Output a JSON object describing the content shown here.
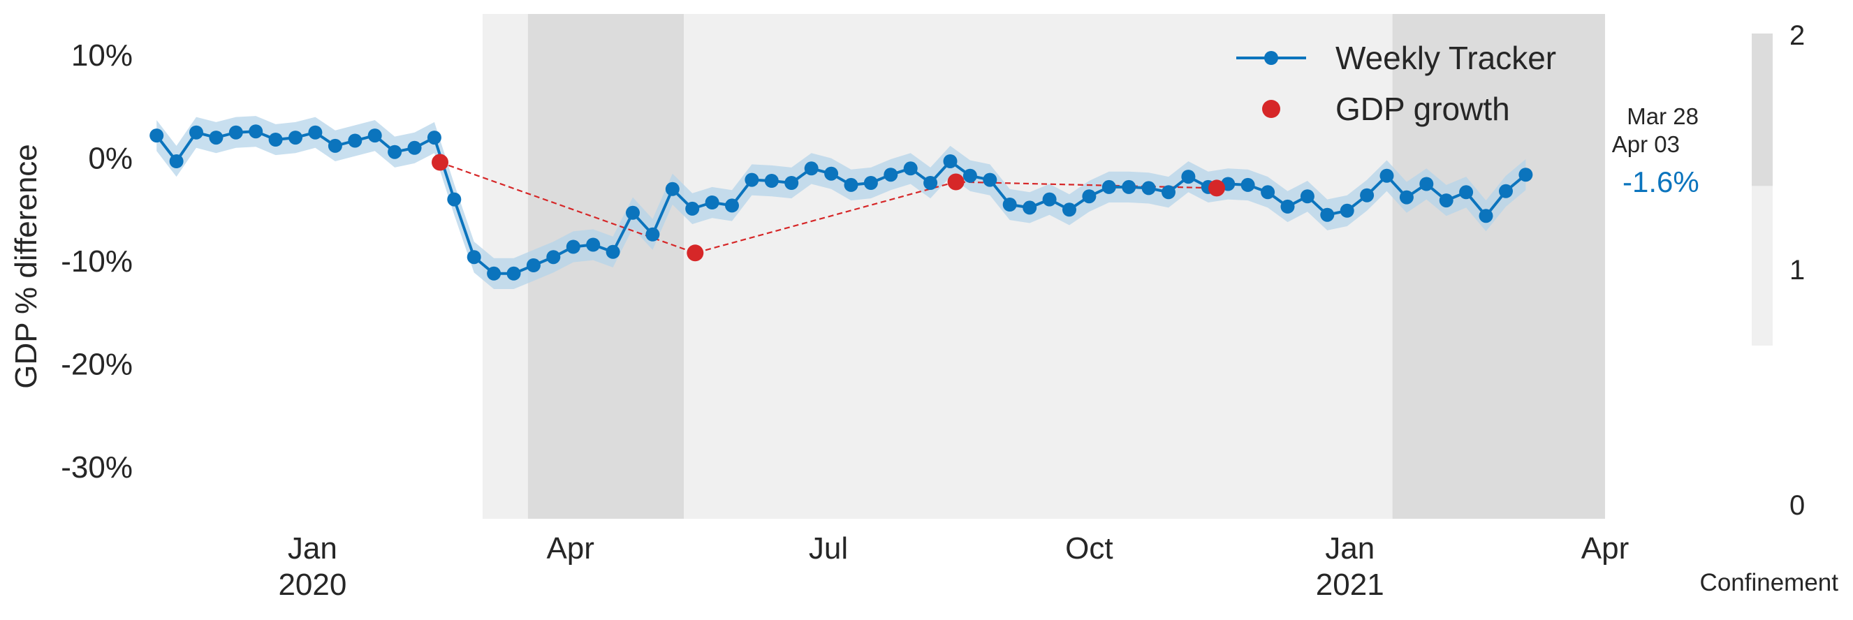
{
  "chart_data": {
    "type": "line",
    "ylabel": "GDP % difference",
    "ylim": [
      -35,
      14
    ],
    "yticks": [
      10,
      0,
      -10,
      -20,
      -30
    ],
    "ytick_labels": [
      "10%",
      "0%",
      "-10%",
      "-20%",
      "-30%"
    ],
    "xlim": [
      "2019-11-04",
      "2021-04-01"
    ],
    "xticks": [
      {
        "date": "2020-01-01",
        "label": "Jan",
        "year": "2020"
      },
      {
        "date": "2020-04-01",
        "label": "Apr",
        "year": ""
      },
      {
        "date": "2020-07-01",
        "label": "Jul",
        "year": ""
      },
      {
        "date": "2020-10-01",
        "label": "Oct",
        "year": ""
      },
      {
        "date": "2021-01-01",
        "label": "Jan",
        "year": "2021"
      },
      {
        "date": "2021-04-01",
        "label": "Apr",
        "year": ""
      }
    ],
    "grid": false,
    "legend_position": "top-right",
    "confinement": {
      "label": "Confinement",
      "colorbar_ticks": [
        "0",
        "1",
        "2"
      ],
      "periods": [
        {
          "start": "2020-03-01",
          "end": "2020-03-17",
          "level": 1
        },
        {
          "start": "2020-03-17",
          "end": "2020-05-11",
          "level": 2
        },
        {
          "start": "2020-05-11",
          "end": "2021-01-16",
          "level": 1
        },
        {
          "start": "2021-01-16",
          "end": "2021-04-01",
          "level": 2
        }
      ],
      "level_colors": {
        "1": "#f0f0f0",
        "2": "#dcdcdc"
      }
    },
    "series": [
      {
        "name": "Weekly Tracker",
        "color": "#0b74bd",
        "band_color": "#b5d4ea",
        "start_date": "2019-11-07",
        "step_days": 7,
        "values": [
          2.2,
          -0.3,
          2.5,
          2.0,
          2.5,
          2.6,
          1.8,
          2.0,
          2.5,
          1.2,
          1.7,
          2.2,
          0.6,
          1.0,
          2.0,
          -4.0,
          -9.6,
          -11.2,
          -11.2,
          -10.4,
          -9.6,
          -8.6,
          -8.4,
          -9.1,
          -5.3,
          -7.4,
          -3.0,
          -4.9,
          -4.3,
          -4.6,
          -2.1,
          -2.2,
          -2.4,
          -1.0,
          -1.5,
          -2.6,
          -2.4,
          -1.6,
          -1.0,
          -2.4,
          -0.3,
          -1.7,
          -2.1,
          -4.5,
          -4.8,
          -4.0,
          -5.0,
          -3.7,
          -2.8,
          -2.8,
          -2.9,
          -3.3,
          -1.8,
          -2.8,
          -2.5,
          -2.6,
          -3.3,
          -4.7,
          -3.7,
          -5.5,
          -5.1,
          -3.6,
          -1.7,
          -3.8,
          -2.5,
          -4.1,
          -3.3,
          -5.6,
          -3.2,
          -1.6
        ],
        "band_width": 1.5
      },
      {
        "name": "GDP growth",
        "color": "#d62728",
        "style": "dashed",
        "points": [
          {
            "date": "2020-02-15",
            "value": -0.4
          },
          {
            "date": "2020-05-15",
            "value": -9.2
          },
          {
            "date": "2020-08-15",
            "value": -2.3
          },
          {
            "date": "2020-11-15",
            "value": -2.9
          }
        ]
      }
    ],
    "annotations": {
      "last_value": "-1.6%",
      "date_line1": "Mar 28",
      "date_line2": "Apr 03"
    }
  }
}
